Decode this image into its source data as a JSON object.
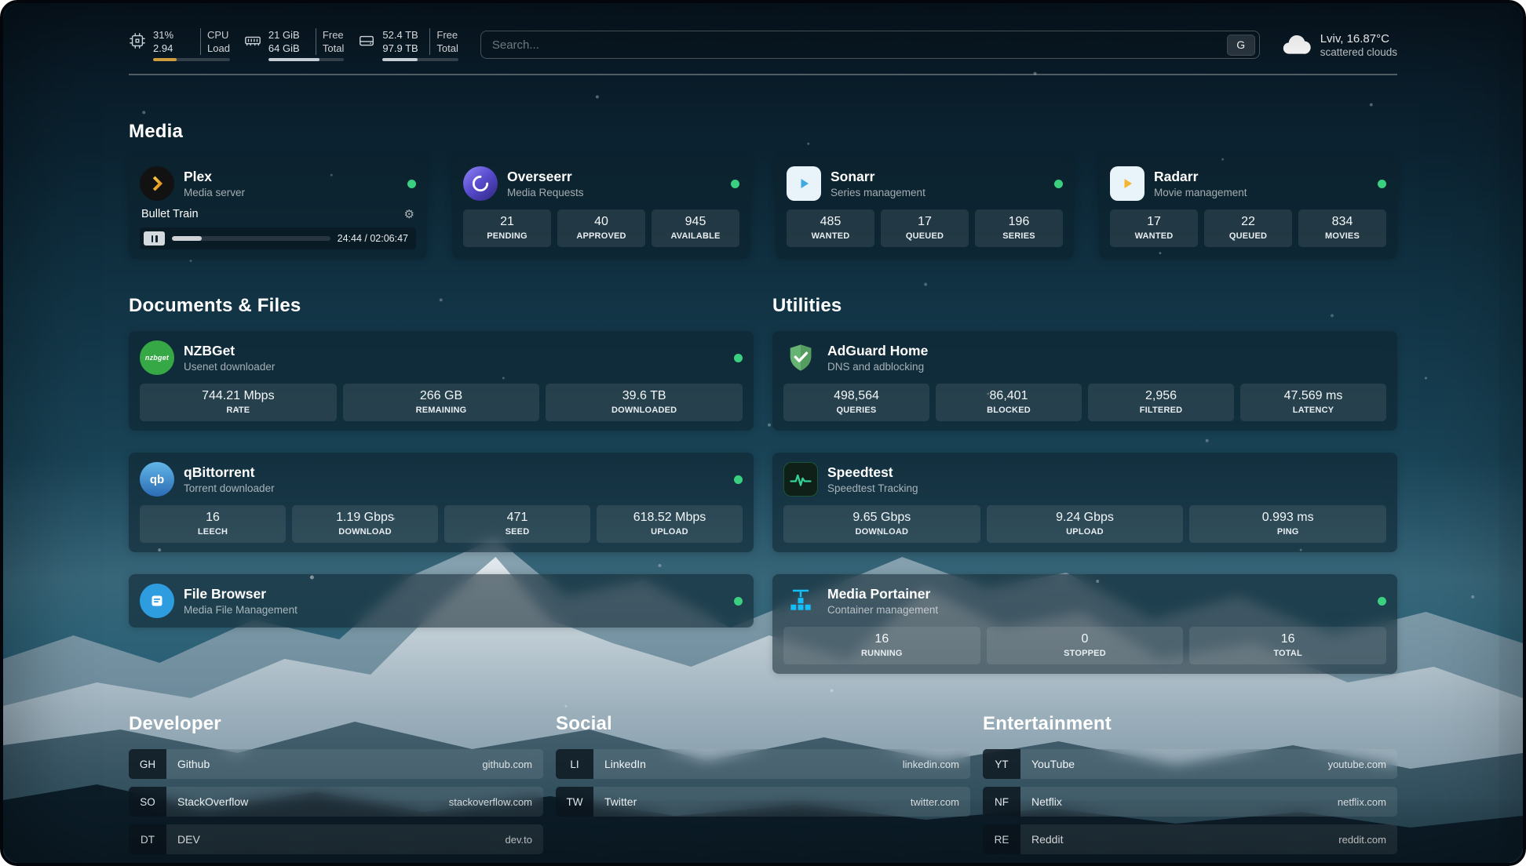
{
  "topbar": {
    "resources": [
      {
        "icon": "cpu-icon",
        "value1": "31%",
        "value2": "2.94",
        "label1": "CPU",
        "label2": "Load",
        "bar_percent": 31
      },
      {
        "icon": "memory-icon",
        "value1": "21 GiB",
        "value2": "64 GiB",
        "label1": "Free",
        "label2": "Total",
        "bar_percent": 67
      },
      {
        "icon": "disk-icon",
        "value1": "52.4 TB",
        "value2": "97.9 TB",
        "label1": "Free",
        "label2": "Total",
        "bar_percent": 46
      }
    ],
    "search": {
      "placeholder": "Search...",
      "provider_button": "G"
    },
    "weather": {
      "icon": "cloud-icon",
      "location": "Lviv, 16.87°C",
      "condition": "scattered clouds"
    }
  },
  "sections": {
    "media": {
      "heading": "Media"
    },
    "documents": {
      "heading": "Documents & Files"
    },
    "utilities": {
      "heading": "Utilities"
    }
  },
  "services": {
    "plex": {
      "title": "Plex",
      "subtitle": "Media server",
      "now_playing": "Bullet Train",
      "time_display": "24:44 / 02:06:47",
      "progress_percent": 19,
      "online": true
    },
    "overseerr": {
      "title": "Overseerr",
      "subtitle": "Media Requests",
      "online": true,
      "stats": [
        {
          "value": "21",
          "label": "PENDING"
        },
        {
          "value": "40",
          "label": "APPROVED"
        },
        {
          "value": "945",
          "label": "AVAILABLE"
        }
      ]
    },
    "sonarr": {
      "title": "Sonarr",
      "subtitle": "Series management",
      "online": true,
      "stats": [
        {
          "value": "485",
          "label": "WANTED"
        },
        {
          "value": "17",
          "label": "QUEUED"
        },
        {
          "value": "196",
          "label": "SERIES"
        }
      ]
    },
    "radarr": {
      "title": "Radarr",
      "subtitle": "Movie management",
      "online": true,
      "stats": [
        {
          "value": "17",
          "label": "WANTED"
        },
        {
          "value": "22",
          "label": "QUEUED"
        },
        {
          "value": "834",
          "label": "MOVIES"
        }
      ]
    },
    "nzbget": {
      "title": "NZBGet",
      "subtitle": "Usenet downloader",
      "icon_text": "nzbget",
      "online": true,
      "stats": [
        {
          "value": "744.21 Mbps",
          "label": "RATE"
        },
        {
          "value": "266 GB",
          "label": "REMAINING"
        },
        {
          "value": "39.6 TB",
          "label": "DOWNLOADED"
        }
      ]
    },
    "qbittorrent": {
      "title": "qBittorrent",
      "subtitle": "Torrent downloader",
      "icon_text": "qb",
      "online": true,
      "stats": [
        {
          "value": "16",
          "label": "LEECH"
        },
        {
          "value": "1.19 Gbps",
          "label": "DOWNLOAD"
        },
        {
          "value": "471",
          "label": "SEED"
        },
        {
          "value": "618.52 Mbps",
          "label": "UPLOAD"
        }
      ]
    },
    "filebrowser": {
      "title": "File Browser",
      "subtitle": "Media File Management",
      "online": true
    },
    "adguard": {
      "title": "AdGuard Home",
      "subtitle": "DNS and adblocking",
      "stats": [
        {
          "value": "498,564",
          "label": "QUERIES"
        },
        {
          "value": "86,401",
          "label": "BLOCKED"
        },
        {
          "value": "2,956",
          "label": "FILTERED"
        },
        {
          "value": "47.569 ms",
          "label": "LATENCY"
        }
      ]
    },
    "speedtest": {
      "title": "Speedtest",
      "subtitle": "Speedtest Tracking",
      "stats": [
        {
          "value": "9.65 Gbps",
          "label": "DOWNLOAD"
        },
        {
          "value": "9.24 Gbps",
          "label": "UPLOAD"
        },
        {
          "value": "0.993 ms",
          "label": "PING"
        }
      ]
    },
    "portainer": {
      "title": "Media Portainer",
      "subtitle": "Container management",
      "online": true,
      "stats": [
        {
          "value": "16",
          "label": "RUNNING"
        },
        {
          "value": "0",
          "label": "STOPPED"
        },
        {
          "value": "16",
          "label": "TOTAL"
        }
      ]
    }
  },
  "bookmarks": [
    {
      "heading": "Developer",
      "items": [
        {
          "abbr": "GH",
          "name": "Github",
          "url": "github.com"
        },
        {
          "abbr": "SO",
          "name": "StackOverflow",
          "url": "stackoverflow.com"
        },
        {
          "abbr": "DT",
          "name": "DEV",
          "url": "dev.to"
        }
      ]
    },
    {
      "heading": "Social",
      "items": [
        {
          "abbr": "LI",
          "name": "LinkedIn",
          "url": "linkedin.com"
        },
        {
          "abbr": "TW",
          "name": "Twitter",
          "url": "twitter.com"
        }
      ]
    },
    {
      "heading": "Entertainment",
      "items": [
        {
          "abbr": "YT",
          "name": "YouTube",
          "url": "youtube.com"
        },
        {
          "abbr": "NF",
          "name": "Netflix",
          "url": "netflix.com"
        },
        {
          "abbr": "RE",
          "name": "Reddit",
          "url": "reddit.com"
        }
      ]
    }
  ],
  "glyphs": {
    "gear": "⚙"
  },
  "colors": {
    "status_online": "#3ad07f",
    "plex": "#e5a00d",
    "overseerr": "#5a4dd0",
    "sonarr": "#3fa9e0",
    "radarr": "#f5b52e",
    "nzbget": "#36a845",
    "qbittorrent": "#2c6cb4",
    "filebrowser": "#2d9de0",
    "adguard": "#67b373",
    "speedtest_wave": "#34d399",
    "portainer": "#13bef9",
    "cpu_bar": "#d9a441"
  }
}
